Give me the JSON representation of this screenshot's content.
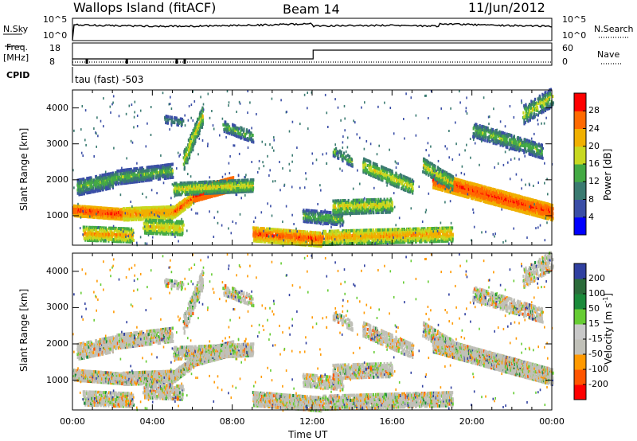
{
  "header": {
    "station": "Wallops Island (fitACF)",
    "beam": "Beam 14",
    "date": "11/Jun/2012"
  },
  "panels": {
    "nsky_label": "N.Sky",
    "nsearch_label": "N.Search",
    "freq_label_line1": "Freq.",
    "freq_label_line2": "[MHz]",
    "nave_label": "Nave",
    "cpid_label": "CPID",
    "cpid_value": "tau (fast) -503",
    "nsky_ticks": [
      "10^5",
      "10^0"
    ],
    "nsearch_ticks": [
      "10^5",
      "10^0"
    ],
    "freq_ticks": [
      "18",
      "8"
    ],
    "nave_ticks": [
      "60",
      "0"
    ]
  },
  "colors": {
    "power": [
      "#0000ff",
      "#3a4ea6",
      "#3a7a70",
      "#44aa44",
      "#c8d820",
      "#f0b000",
      "#ff6a00",
      "#ff0000"
    ],
    "velocity": [
      "#ff0000",
      "#ff5500",
      "#ff9900",
      "#c0c0b8",
      "#c8c8c8",
      "#66cc33",
      "#1a8a3a",
      "#2b6b3a",
      "#3040a0"
    ]
  },
  "chart_data": [
    {
      "type": "heatmap",
      "name": "power",
      "xlabel": "",
      "ylabel": "Slant Range [km]",
      "x_range_hours": [
        0,
        24
      ],
      "ylim": [
        180,
        4500
      ],
      "y_ticks": [
        1000,
        2000,
        3000,
        4000
      ],
      "colorbar": {
        "label": "Power [dB]",
        "ticks": [
          4,
          8,
          12,
          16,
          20,
          24,
          28
        ],
        "range": [
          0,
          32
        ]
      },
      "features": [
        {
          "hours": [
            0.0,
            8.0
          ],
          "range_km": [
            900,
            1300
          ],
          "level_db": "18-28",
          "note": ""
        },
        {
          "hours": [
            0.5,
            9.0
          ],
          "range_km": [
            1800,
            2200
          ],
          "level_db": "12-20",
          "note": ""
        },
        {
          "hours": [
            6.0,
            8.0
          ],
          "range_km": [
            1400,
            1900
          ],
          "level_db": "24-30",
          "note": ""
        },
        {
          "hours": [
            10.0,
            19.0
          ],
          "range_km": [
            200,
            700
          ],
          "level_db": "16-26",
          "note": ""
        },
        {
          "hours": [
            18.0,
            24.0
          ],
          "range_km": [
            1000,
            2000
          ],
          "level_db": "20-30",
          "note": ""
        }
      ]
    },
    {
      "type": "heatmap",
      "name": "velocity",
      "xlabel": "Time UT",
      "ylabel": "Slant Range [km]",
      "x_ticks": [
        "00:00",
        "04:00",
        "08:00",
        "12:00",
        "16:00",
        "20:00",
        "00:00"
      ],
      "ylim": [
        180,
        4500
      ],
      "y_ticks": [
        1000,
        2000,
        3000,
        4000
      ],
      "colorbar": {
        "label": "Velocity [m s^-1]",
        "ticks": [
          -200,
          -100,
          -50,
          -15,
          15,
          50,
          100,
          200
        ]
      },
      "features": [
        {
          "hours": [
            0.0,
            24.0
          ],
          "range_km": [
            200,
            2200
          ],
          "velocity_ms": "-15 to 15",
          "note": ""
        }
      ]
    }
  ],
  "labels": {
    "power_colorbar": "Power [dB]",
    "velocity_colorbar": "Velocity [m s",
    "velocity_colorbar_exp": "-1",
    "velocity_colorbar_close": "]",
    "slant_range": "Slant Range [km]",
    "time_ut": "Time UT"
  }
}
